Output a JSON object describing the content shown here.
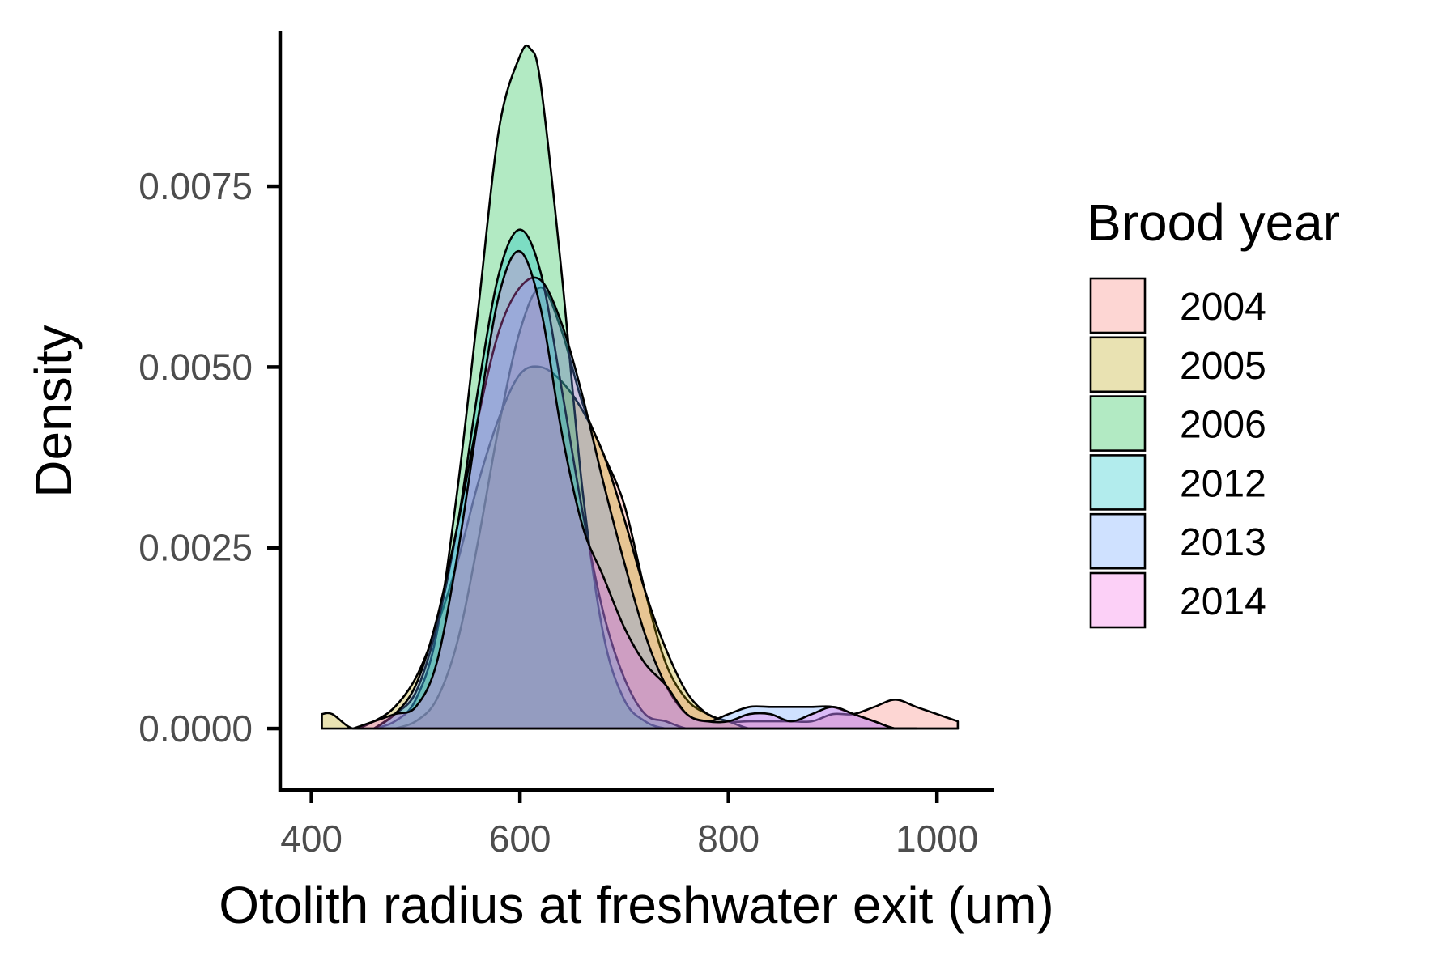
{
  "chart_data": {
    "type": "area",
    "subtype": "density",
    "title": "",
    "xlabel": "Otolith radius at freshwater exit (um)",
    "ylabel": "Density",
    "xlim": [
      370,
      1055
    ],
    "ylim": [
      -0.00085,
      0.00965
    ],
    "x_ticks": [
      400,
      600,
      800,
      1000
    ],
    "x_tick_labels": [
      "400",
      "600",
      "800",
      "1000"
    ],
    "y_ticks": [
      0.0,
      0.0025,
      0.005,
      0.0075
    ],
    "y_tick_labels": [
      "0.0000",
      "0.0025",
      "0.0050",
      "0.0075"
    ],
    "grid": false,
    "legend": {
      "title": "Brood year",
      "position": "right",
      "entries": [
        "2004",
        "2005",
        "2006",
        "2012",
        "2013",
        "2014"
      ]
    },
    "fill_opacity": 0.3,
    "series": [
      {
        "name": "2004",
        "color": "#F8766D",
        "x": [
          480,
          500,
          520,
          540,
          560,
          580,
          600,
          620,
          640,
          660,
          680,
          700,
          720,
          740,
          760,
          780,
          800,
          820,
          840,
          860,
          880,
          900,
          920,
          940,
          960,
          980,
          1000,
          1020
        ],
        "y": [
          0.0,
          0.0001,
          0.0004,
          0.0012,
          0.0026,
          0.0042,
          0.0055,
          0.0061,
          0.0055,
          0.0045,
          0.0038,
          0.0031,
          0.0019,
          0.0009,
          0.0004,
          0.0002,
          0.0001,
          0.0001,
          0.0001,
          0.0001,
          0.0001,
          0.0002,
          0.0002,
          0.0003,
          0.0004,
          0.0003,
          0.0002,
          0.0001
        ]
      },
      {
        "name": "2005",
        "color": "#B79F00",
        "x": [
          410,
          420,
          440,
          460,
          480,
          500,
          520,
          540,
          560,
          580,
          600,
          620,
          640,
          660,
          680,
          700,
          720,
          740,
          760,
          780,
          800,
          820,
          840,
          860,
          880,
          900,
          920,
          940,
          960,
          980,
          1000,
          1020
        ],
        "y": [
          0.0002,
          0.0002,
          0.0,
          0.0001,
          0.0003,
          0.0007,
          0.0014,
          0.0023,
          0.0034,
          0.0043,
          0.0049,
          0.005,
          0.0048,
          0.0044,
          0.0038,
          0.0029,
          0.0019,
          0.0011,
          0.0005,
          0.0002,
          0.0001,
          0.0,
          0.0,
          0.0,
          0.0,
          0.0,
          0.0,
          0.0,
          0.0,
          0.0,
          0.0,
          0.0
        ]
      },
      {
        "name": "2006",
        "color": "#00BA38",
        "x": [
          460,
          480,
          500,
          520,
          540,
          560,
          580,
          600,
          610,
          620,
          640,
          660,
          680,
          700,
          720,
          740,
          760,
          780,
          800,
          820,
          840
        ],
        "y": [
          0.0,
          0.0001,
          0.0004,
          0.0013,
          0.0033,
          0.0058,
          0.0083,
          0.0093,
          0.0094,
          0.0089,
          0.0063,
          0.0033,
          0.0013,
          0.0004,
          0.0001,
          0.0,
          0.0,
          0.0,
          0.0,
          0.0,
          0.0
        ]
      },
      {
        "name": "2012",
        "color": "#00BFC4",
        "x": [
          460,
          480,
          500,
          520,
          540,
          560,
          580,
          600,
          620,
          640,
          660,
          680,
          700,
          720,
          740,
          760,
          780,
          800
        ],
        "y": [
          0.0,
          0.0002,
          0.0005,
          0.0014,
          0.0028,
          0.0047,
          0.0063,
          0.0069,
          0.0063,
          0.0047,
          0.003,
          0.0016,
          0.0007,
          0.0002,
          0.0001,
          0.0,
          0.0,
          0.0
        ]
      },
      {
        "name": "2013",
        "color": "#619CFF",
        "x": [
          460,
          480,
          500,
          520,
          540,
          560,
          580,
          600,
          620,
          640,
          660,
          680,
          700,
          720,
          740,
          760,
          780,
          800,
          820,
          840,
          860,
          880,
          900,
          920,
          940,
          960,
          980
        ],
        "y": [
          0.0,
          0.0002,
          0.0006,
          0.0015,
          0.0028,
          0.0043,
          0.0055,
          0.0061,
          0.0062,
          0.0056,
          0.0046,
          0.0034,
          0.0023,
          0.0013,
          0.0006,
          0.0002,
          0.0001,
          0.0002,
          0.0003,
          0.0003,
          0.0003,
          0.0003,
          0.0003,
          0.0002,
          0.0001,
          0.0,
          0.0
        ]
      },
      {
        "name": "2014",
        "color": "#F564E3",
        "x": [
          440,
          460,
          480,
          500,
          520,
          540,
          560,
          580,
          600,
          620,
          640,
          660,
          680,
          700,
          720,
          740,
          760,
          780,
          800,
          820,
          840,
          860,
          880,
          900,
          920,
          940,
          960,
          980
        ],
        "y": [
          0.0,
          0.0001,
          0.0002,
          0.0003,
          0.0009,
          0.0024,
          0.0043,
          0.006,
          0.0066,
          0.0058,
          0.0041,
          0.0028,
          0.0021,
          0.0014,
          0.0009,
          0.0006,
          0.0002,
          0.0001,
          0.0001,
          0.0002,
          0.0002,
          0.0001,
          0.0002,
          0.0003,
          0.0002,
          0.0001,
          0.0,
          0.0
        ]
      }
    ]
  }
}
